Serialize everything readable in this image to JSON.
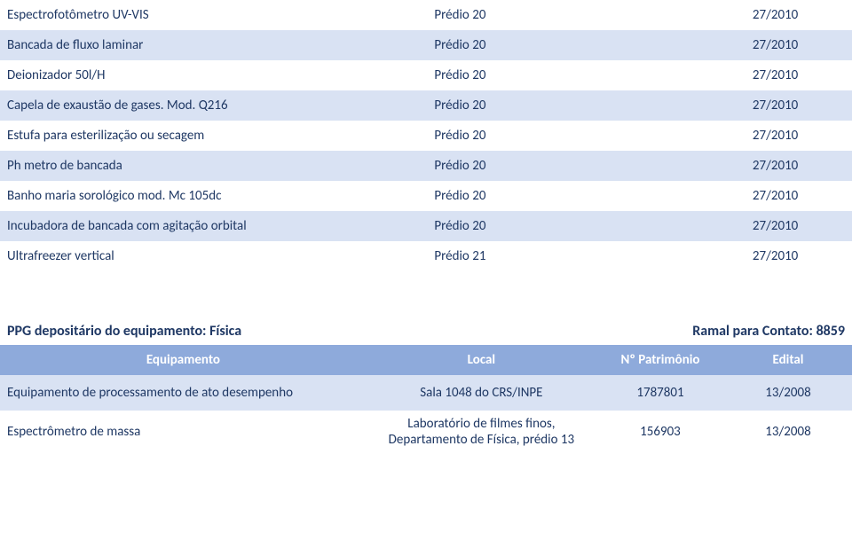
{
  "colors": {
    "text": "#1f3864",
    "row_alt": "#d9e2f3",
    "row_base": "#ffffff",
    "header_bg": "#8eaadb",
    "header_fg": "#ffffff"
  },
  "table1": {
    "rows": [
      {
        "name": "Espectrofotômetro UV-VIS",
        "loc": "Prédio 20",
        "pat": "",
        "edital": "27/2010"
      },
      {
        "name": "Bancada de fluxo laminar",
        "loc": "Prédio 20",
        "pat": "",
        "edital": "27/2010"
      },
      {
        "name": "Deionizador 50l/H",
        "loc": "Prédio 20",
        "pat": "",
        "edital": "27/2010"
      },
      {
        "name": "Capela de exaustão de gases. Mod. Q216",
        "loc": "Prédio 20",
        "pat": "",
        "edital": "27/2010"
      },
      {
        "name": "Estufa para esterilização ou secagem",
        "loc": "Prédio 20",
        "pat": "",
        "edital": "27/2010"
      },
      {
        "name": "Ph metro de bancada",
        "loc": "Prédio 20",
        "pat": "",
        "edital": "27/2010"
      },
      {
        "name": "Banho maria sorológico mod. Mc 105dc",
        "loc": "Prédio 20",
        "pat": "",
        "edital": "27/2010"
      },
      {
        "name": "Incubadora de bancada com agitação orbital",
        "loc": "Prédio 20",
        "pat": "",
        "edital": "27/2010"
      },
      {
        "name": "Ultrafreezer vertical",
        "loc": "Prédio 21",
        "pat": "",
        "edital": "27/2010"
      }
    ]
  },
  "section2": {
    "title_left": "PPG depositário do equipamento: Física",
    "title_right": "Ramal para Contato: 8859",
    "headers": {
      "equip": "Equipamento",
      "local": "Local",
      "pat": "Nº Patrimônio",
      "edital": "Edital"
    },
    "rows": [
      {
        "name": "Equipamento de processamento de ato desempenho",
        "loc": "Sala 1048 do CRS/INPE",
        "pat": "1787801",
        "edital": "13/2008"
      },
      {
        "name": "Espectrômetro de massa",
        "loc": "Laboratório de filmes finos, Departamento de Física, prédio 13",
        "pat": "156903",
        "edital": "13/2008"
      }
    ]
  }
}
